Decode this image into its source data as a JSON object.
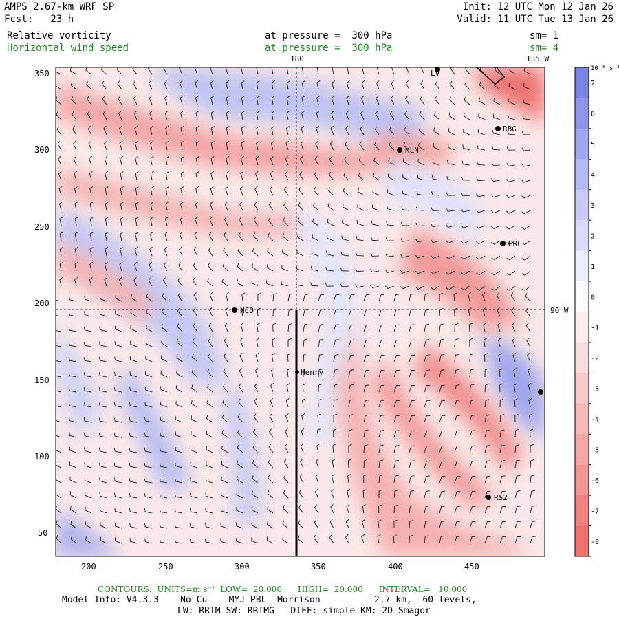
{
  "header": {
    "model": "AMPS 2.67-km WRF SP",
    "init": "Init: 12 UTC Mon 12 Jan 26",
    "fcst": "Fcst:   23 h",
    "valid": "Valid: 11 UTC Tue 13 Jan 26",
    "field1": {
      "name": "Relative vorticity",
      "level": "at pressure =  300 hPa",
      "sm": "sm= 1"
    },
    "field2": {
      "name": "Horizontal wind speed",
      "level": "at pressure =  300 hPa",
      "sm": "sm= 4"
    }
  },
  "map": {
    "x_ticks": [
      "200",
      "250",
      "300",
      "350",
      "400",
      "450"
    ],
    "y_ticks": [
      "350",
      "300",
      "250",
      "200",
      "150",
      "100",
      "50"
    ],
    "meridian_labels": {
      "m180": "180",
      "m135w": "135 W",
      "m90w": "90 W"
    },
    "stations": [
      {
        "id": "LV",
        "label": "LV"
      },
      {
        "id": "RBG",
        "label": "RBG"
      },
      {
        "id": "KLN",
        "label": "KLN"
      },
      {
        "id": "HRC",
        "label": "HRC"
      },
      {
        "id": "NCO",
        "label": "NCO"
      },
      {
        "id": "Henry",
        "label": "Henry"
      },
      {
        "id": "RS2",
        "label": "RS2"
      }
    ]
  },
  "colorbar": {
    "units": "10⁻⁵ s⁻¹",
    "labels": [
      "7",
      "6",
      "5",
      "4",
      "3",
      "2",
      "1",
      "0",
      "-1",
      "-2",
      "-3",
      "-4",
      "-5",
      "-6",
      "-7",
      "-8"
    ],
    "colors": [
      "#7b83e4",
      "#8e96ea",
      "#a2a8ef",
      "#b4b9f2",
      "#c7cbf6",
      "#d9dcf9",
      "#eceefd",
      "#fbfbff",
      "#fdeeee",
      "#fbdcdc",
      "#f9caca",
      "#f7b8b8",
      "#f5a6a6",
      "#f39494",
      "#f18282",
      "#f07070"
    ]
  },
  "footer": {
    "contours": "CONTOURS:  UNITS=m s⁻¹  LOW=  20.000      HIGH=  20.000      INTERVAL=   10.000",
    "model_info": "Model Info: V4.3.3    No Cu    MYJ PBL  Morrison          2.7 km,  60 levels,",
    "physics": "LW: RRTM SW: RRTMG   DIFF: simple KM: 2D Smagor"
  }
}
